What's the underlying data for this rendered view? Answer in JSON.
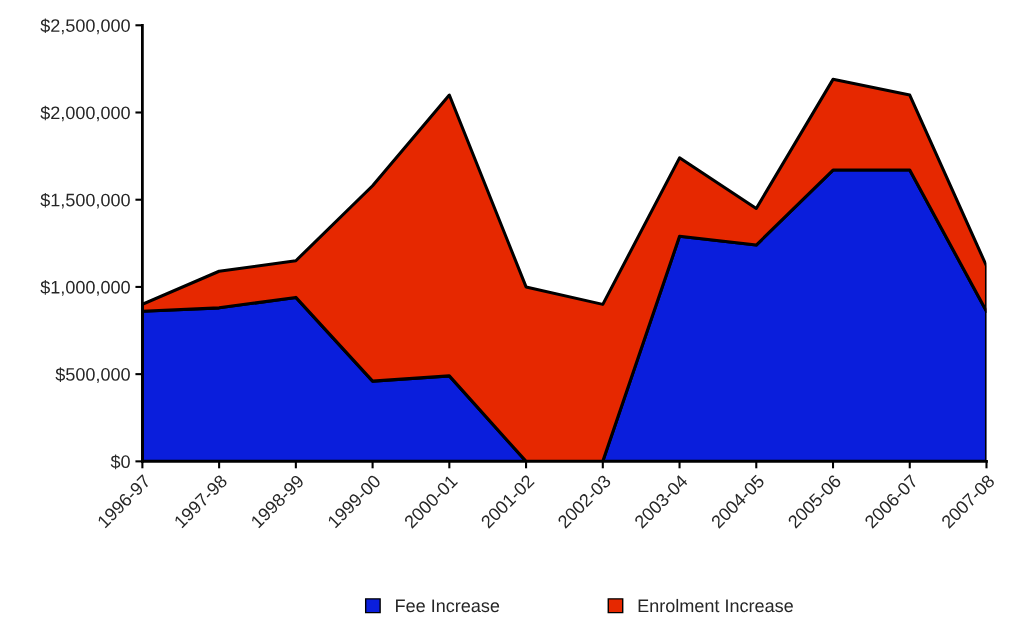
{
  "chart_data": {
    "type": "area",
    "stacked": true,
    "categories": [
      "1996-97",
      "1997-98",
      "1998-99",
      "1999-00",
      "2000-01",
      "2001-02",
      "2002-03",
      "2003-04",
      "2004-05",
      "2005-06",
      "2006-07",
      "2007-08"
    ],
    "series": [
      {
        "name": "Fee Increase",
        "color": "#0a1edc",
        "values": [
          860000,
          880000,
          940000,
          460000,
          490000,
          0,
          0,
          1290000,
          1240000,
          1670000,
          1670000,
          860000
        ]
      },
      {
        "name": "Enrolment Increase",
        "color": "#e62800",
        "values": [
          40000,
          210000,
          210000,
          1120000,
          1610000,
          1000000,
          900000,
          450000,
          210000,
          520000,
          430000,
          260000
        ]
      }
    ],
    "ylim": [
      0,
      2500000
    ],
    "yticks": [
      {
        "value": 0,
        "label": "$0"
      },
      {
        "value": 500000,
        "label": "$500,000"
      },
      {
        "value": 1000000,
        "label": "$1,000,000"
      },
      {
        "value": 1500000,
        "label": "$1,500,000"
      },
      {
        "value": 2000000,
        "label": "$2,000,000"
      },
      {
        "value": 2500000,
        "label": "$2,500,000"
      }
    ],
    "legend": "bottom",
    "grid": false
  }
}
